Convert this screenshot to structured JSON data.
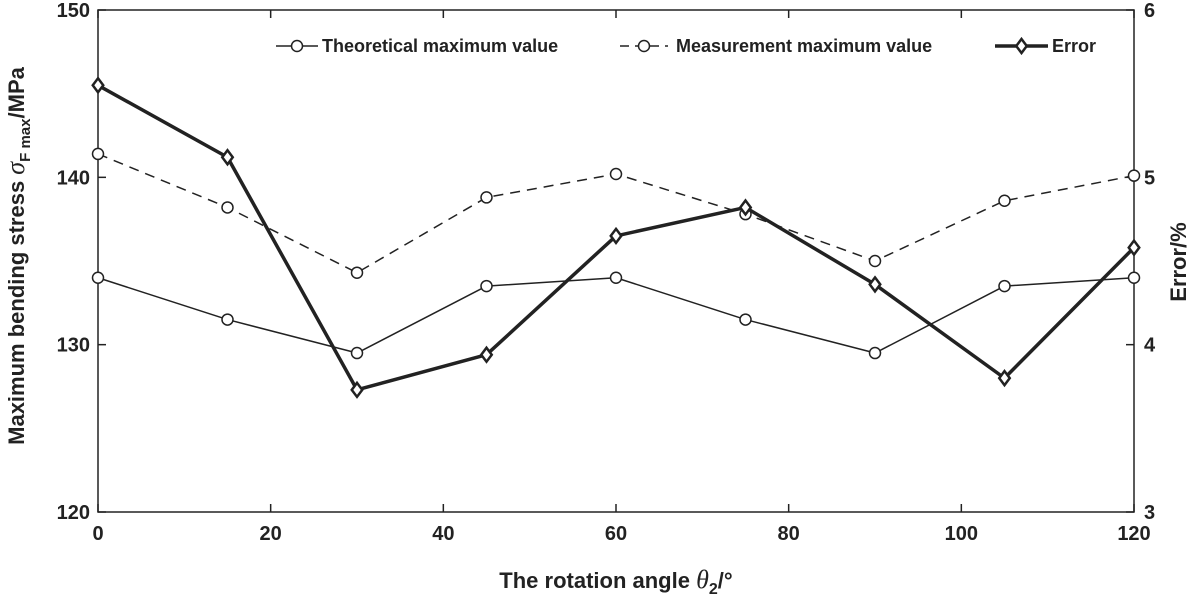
{
  "chart_data": {
    "type": "line",
    "x": [
      0,
      15,
      30,
      45,
      60,
      75,
      90,
      105,
      120
    ],
    "xlim": [
      0,
      120
    ],
    "xticks": [
      "0",
      "20",
      "40",
      "60",
      "80",
      "100",
      "120"
    ],
    "ylim_left": [
      120,
      150
    ],
    "yticks_left": [
      "120",
      "130",
      "140",
      "150"
    ],
    "ylim_right": [
      3,
      6
    ],
    "yticks_right": [
      "3",
      "4",
      "5",
      "6"
    ],
    "xlabel": {
      "text": "The rotation angle ",
      "symbol": "θ",
      "subscript": "2",
      "unit": "/°"
    },
    "ylabel_left": {
      "text": "Maximum bending stress ",
      "symbol": "σ",
      "subscript": "F max",
      "unit": "/MPa"
    },
    "ylabel_right": "Error/%",
    "legend_position": "top-right",
    "grid": false,
    "series": [
      {
        "name": "Theoretical maximum value",
        "axis": "left",
        "style": "solid-thin-circle",
        "values": [
          134,
          131.5,
          129.5,
          133.5,
          134,
          131.5,
          129.5,
          133.5,
          134
        ]
      },
      {
        "name": "Measurement maximum value",
        "axis": "left",
        "style": "dashed-circle",
        "values": [
          141.4,
          138.2,
          134.3,
          138.8,
          140.2,
          137.8,
          135,
          138.6,
          140.1
        ]
      },
      {
        "name": "Error",
        "axis": "right",
        "style": "solid-thick-diamond",
        "values": [
          5.55,
          5.12,
          3.73,
          3.94,
          4.65,
          4.82,
          4.36,
          3.8,
          4.58
        ]
      }
    ]
  }
}
